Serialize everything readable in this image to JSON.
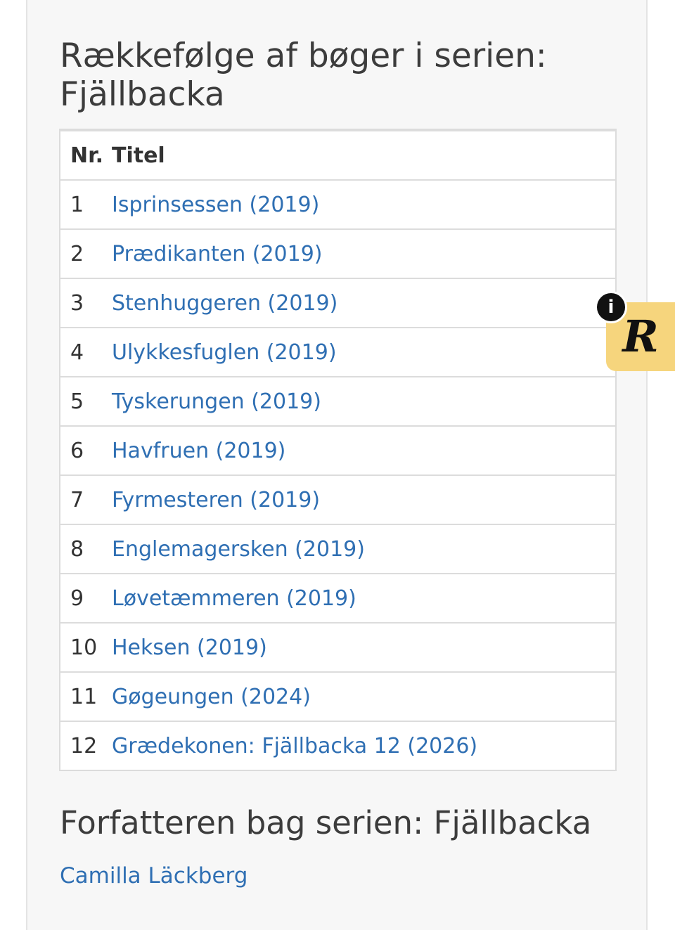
{
  "series": {
    "heading": "Rækkefølge af bøger i serien: Fjällbacka"
  },
  "table": {
    "headers": {
      "nr": "Nr.",
      "title": "Titel"
    },
    "rows": [
      {
        "nr": "1",
        "title": "Isprinsessen (2019)"
      },
      {
        "nr": "2",
        "title": "Prædikanten (2019)"
      },
      {
        "nr": "3",
        "title": "Stenhuggeren (2019)"
      },
      {
        "nr": "4",
        "title": "Ulykkesfuglen (2019)"
      },
      {
        "nr": "5",
        "title": "Tyskerungen (2019)"
      },
      {
        "nr": "6",
        "title": "Havfruen (2019)"
      },
      {
        "nr": "7",
        "title": "Fyrmesteren (2019)"
      },
      {
        "nr": "8",
        "title": "Englemagersken (2019)"
      },
      {
        "nr": "9",
        "title": "Løvetæmmeren (2019)"
      },
      {
        "nr": "10",
        "title": "Heksen (2019)"
      },
      {
        "nr": "11",
        "title": "Gøgeungen (2024)"
      },
      {
        "nr": "12",
        "title": "Grædekonen: Fjällbacka 12 (2026)"
      }
    ]
  },
  "author": {
    "heading": "Forfatteren bag serien: Fjällbacka",
    "name": "Camilla Läckberg"
  },
  "widget": {
    "logo_letter": "R",
    "info_symbol": "i",
    "background_color": "#f6d57d"
  },
  "colors": {
    "link": "#2f6fb3",
    "heading_text": "#3c3c3c",
    "table_border": "#dcdcdc"
  }
}
